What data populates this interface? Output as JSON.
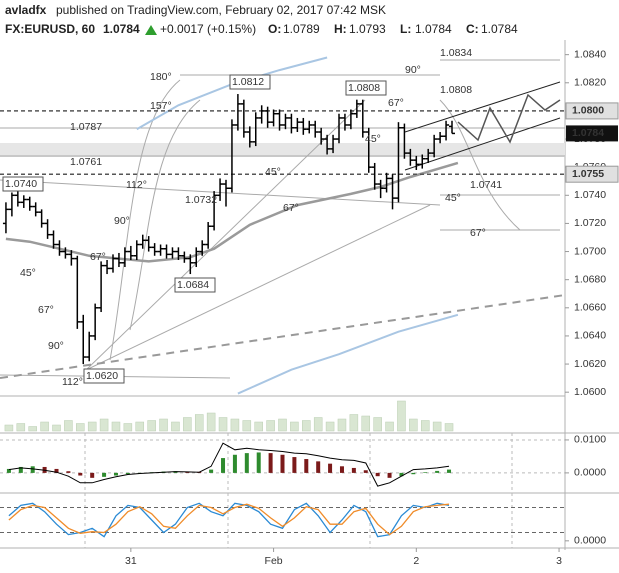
{
  "header": {
    "author": "avladfx",
    "published": "published on TradingView.com, February 02, 2017 07:42 MSK",
    "symbol": "FX:EURUSD, 60",
    "last": "1.0784",
    "change": "+0.0017 (+0.15%)",
    "ohlc": [
      {
        "label": "O:",
        "value": "1.0789"
      },
      {
        "label": "H:",
        "value": "1.0793"
      },
      {
        "label": "L:",
        "value": "1.0784"
      },
      {
        "label": "C:",
        "value": "1.0784"
      }
    ]
  },
  "chart_data": [
    {
      "type": "ohlc",
      "xlim": [
        -1,
        94
      ],
      "ylim": [
        1.0598,
        1.0849
      ],
      "xticks": [
        {
          "value": 21,
          "label": "31"
        },
        {
          "value": 45,
          "label": "Feb"
        },
        {
          "value": 69,
          "label": "2"
        },
        {
          "value": 93,
          "label": "3"
        }
      ],
      "yticks": [
        {
          "value": 1.084,
          "label": "1.0840"
        },
        {
          "value": 1.082,
          "label": "1.0820"
        },
        {
          "value": 1.08,
          "label": "1.0800"
        },
        {
          "value": 1.078,
          "label": "1.0780"
        },
        {
          "value": 1.076,
          "label": "1.0760"
        },
        {
          "value": 1.074,
          "label": "1.0740"
        },
        {
          "value": 1.072,
          "label": "1.0720"
        },
        {
          "value": 1.07,
          "label": "1.0700"
        },
        {
          "value": 1.068,
          "label": "1.0680"
        },
        {
          "value": 1.066,
          "label": "1.0660"
        },
        {
          "value": 1.064,
          "label": "1.0640"
        },
        {
          "value": 1.062,
          "label": "1.0620"
        },
        {
          "value": 1.06,
          "label": "1.0600"
        }
      ],
      "price_lines": [
        {
          "value": 1.08,
          "label": "1.0800"
        },
        {
          "value": 1.0755,
          "label": "1.0755"
        }
      ],
      "last_price": {
        "value": 1.0784,
        "label": "1.0784"
      },
      "color": "#000000",
      "bars": [
        [
          1.072,
          1.0735,
          1.0713,
          1.073
        ],
        [
          1.073,
          1.0742,
          1.0725,
          1.074
        ],
        [
          1.074,
          1.0743,
          1.0732,
          1.0735
        ],
        [
          1.0735,
          1.074,
          1.0731,
          1.0737
        ],
        [
          1.0737,
          1.0739,
          1.0729,
          1.0732
        ],
        [
          1.0732,
          1.0735,
          1.0725,
          1.0728
        ],
        [
          1.0728,
          1.073,
          1.0717,
          1.072
        ],
        [
          1.072,
          1.0723,
          1.0709,
          1.0712
        ],
        [
          1.0712,
          1.0715,
          1.0702,
          1.0705
        ],
        [
          1.0705,
          1.0708,
          1.0697,
          1.07
        ],
        [
          1.07,
          1.0703,
          1.0695,
          1.0698
        ],
        [
          1.0698,
          1.0701,
          1.069,
          1.0695
        ],
        [
          1.0695,
          1.0697,
          1.0645,
          1.065
        ],
        [
          1.065,
          1.0655,
          1.062,
          1.0625
        ],
        [
          1.0625,
          1.0643,
          1.0622,
          1.064
        ],
        [
          1.064,
          1.0663,
          1.0637,
          1.066
        ],
        [
          1.066,
          1.0693,
          1.0657,
          1.069
        ],
        [
          1.069,
          1.0694,
          1.0684,
          1.0688
        ],
        [
          1.0688,
          1.0698,
          1.0685,
          1.0695
        ],
        [
          1.0695,
          1.0699,
          1.0689,
          1.0692
        ],
        [
          1.0692,
          1.0703,
          1.0689,
          1.07
        ],
        [
          1.07,
          1.0704,
          1.0694,
          1.0697
        ],
        [
          1.0697,
          1.0708,
          1.0694,
          1.0705
        ],
        [
          1.0705,
          1.0712,
          1.0702,
          1.0708
        ],
        [
          1.0708,
          1.0711,
          1.07,
          1.0703
        ],
        [
          1.0703,
          1.0706,
          1.0697,
          1.07
        ],
        [
          1.07,
          1.0705,
          1.0697,
          1.0702
        ],
        [
          1.0702,
          1.0705,
          1.0695,
          1.0698
        ],
        [
          1.0698,
          1.0703,
          1.0695,
          1.07
        ],
        [
          1.07,
          1.0703,
          1.0694,
          1.0697
        ],
        [
          1.0697,
          1.07,
          1.0692,
          1.0695
        ],
        [
          1.0695,
          1.0698,
          1.0684,
          1.0692
        ],
        [
          1.0692,
          1.0703,
          1.0689,
          1.07
        ],
        [
          1.07,
          1.0708,
          1.0697,
          1.0705
        ],
        [
          1.0705,
          1.0721,
          1.0702,
          1.0718
        ],
        [
          1.0718,
          1.0743,
          1.0715,
          1.074
        ],
        [
          1.074,
          1.0752,
          1.0736,
          1.0748
        ],
        [
          1.0748,
          1.0751,
          1.0732,
          1.0745
        ],
        [
          1.0745,
          1.0794,
          1.0742,
          1.079
        ],
        [
          1.079,
          1.0812,
          1.0786,
          1.0805
        ],
        [
          1.0805,
          1.0808,
          1.0781,
          1.0785
        ],
        [
          1.0785,
          1.0789,
          1.0774,
          1.0778
        ],
        [
          1.0778,
          1.0799,
          1.0775,
          1.0795
        ],
        [
          1.0795,
          1.0804,
          1.0791,
          1.08
        ],
        [
          1.08,
          1.0803,
          1.0788,
          1.0792
        ],
        [
          1.0792,
          1.0801,
          1.0789,
          1.0798
        ],
        [
          1.0798,
          1.0801,
          1.0786,
          1.079
        ],
        [
          1.079,
          1.0798,
          1.0787,
          1.0795
        ],
        [
          1.0795,
          1.0798,
          1.0784,
          1.0788
        ],
        [
          1.0788,
          1.0795,
          1.0785,
          1.0792
        ],
        [
          1.0792,
          1.0795,
          1.0783,
          1.0787
        ],
        [
          1.0787,
          1.0793,
          1.0784,
          1.079
        ],
        [
          1.079,
          1.0793,
          1.0781,
          1.0785
        ],
        [
          1.0785,
          1.0788,
          1.0776,
          1.078
        ],
        [
          1.078,
          1.0783,
          1.0769,
          1.0773
        ],
        [
          1.0773,
          1.0783,
          1.077,
          1.078
        ],
        [
          1.078,
          1.0798,
          1.0777,
          1.0795
        ],
        [
          1.0795,
          1.0798,
          1.0786,
          1.079
        ],
        [
          1.079,
          1.0801,
          1.0787,
          1.0798
        ],
        [
          1.0798,
          1.0808,
          1.0795,
          1.0805
        ],
        [
          1.0805,
          1.0808,
          1.0781,
          1.0785
        ],
        [
          1.0785,
          1.0788,
          1.0756,
          1.076
        ],
        [
          1.076,
          1.0763,
          1.0744,
          1.0748
        ],
        [
          1.0748,
          1.0751,
          1.0738,
          1.0745
        ],
        [
          1.0745,
          1.0756,
          1.0742,
          1.0752
        ],
        [
          1.0752,
          1.0755,
          1.073,
          1.0738
        ],
        [
          1.0738,
          1.0792,
          1.0735,
          1.0788
        ],
        [
          1.0788,
          1.0791,
          1.0766,
          1.077
        ],
        [
          1.077,
          1.0773,
          1.0761,
          1.0765
        ],
        [
          1.0765,
          1.0768,
          1.0758,
          1.0762
        ],
        [
          1.0762,
          1.0769,
          1.0759,
          1.0766
        ],
        [
          1.0766,
          1.0773,
          1.0763,
          1.077
        ],
        [
          1.077,
          1.0783,
          1.0767,
          1.078
        ],
        [
          1.078,
          1.0785,
          1.0777,
          1.0782
        ],
        [
          1.0782,
          1.0793,
          1.0779,
          1.079
        ],
        [
          1.0789,
          1.0793,
          1.0784,
          1.0784
        ]
      ],
      "lines": [
        {
          "color": "#9a9a9a",
          "x": [
            0,
            4,
            9,
            14,
            24,
            31,
            35,
            41,
            49,
            58,
            63,
            68,
            76
          ],
          "values": [
            1.0709,
            1.0707,
            1.0702,
            1.0697,
            1.0693,
            1.0696,
            1.0702,
            1.0719,
            1.0733,
            1.0741,
            1.0746,
            1.0753,
            1.0763
          ]
        },
        {
          "color": "#a9c6e3",
          "x": [
            22,
            29,
            38,
            46,
            54
          ],
          "values": [
            1.0787,
            1.0804,
            1.0819,
            1.0829,
            1.0838
          ]
        },
        {
          "color": "#a9c6e3",
          "x": [
            39,
            48,
            56,
            66,
            76
          ],
          "values": [
            1.0599,
            1.0616,
            1.0627,
            1.0643,
            1.0655
          ]
        }
      ],
      "annotations": [
        "1.0834",
        "90°",
        "180°",
        "1.0812",
        "1.0808",
        "1.0808",
        "157°",
        "67°",
        "1.0787",
        "45°",
        "1.0761",
        "45°",
        "112°",
        "1.0740",
        "1.0741",
        "1.0732",
        "45°",
        "67°",
        "90°",
        "67°",
        "67°",
        "45°",
        "1.0684",
        "67°",
        "90°",
        "1.0620",
        "112°"
      ]
    },
    {
      "type": "volume",
      "color": "#d9e6d2",
      "values": [
        20,
        25,
        15,
        30,
        20,
        35,
        25,
        30,
        40,
        30,
        25,
        30,
        35,
        40,
        30,
        45,
        55,
        60,
        45,
        40,
        35,
        30,
        35,
        40,
        30,
        35,
        45,
        30,
        40,
        55,
        50,
        45,
        30,
        100,
        40,
        35,
        30,
        25
      ]
    },
    {
      "type": "macd",
      "ylim": [
        -0.0058,
        0.0115
      ],
      "yticks": [
        {
          "value": 0.01,
          "label": "0.0100"
        },
        {
          "value": 0,
          "label": "0.0000"
        }
      ],
      "series": [
        {
          "color": "#000000",
          "values": [
            0.001,
            0.0015,
            0.0012,
            0.0008,
            0.0002,
            -0.001,
            -0.003,
            -0.003,
            -0.002,
            -0.0012,
            -0.0005,
            -0.0002,
            0.0,
            0.0002,
            0.0004,
            0.0003,
            0.0002,
            0.002,
            0.009,
            0.007,
            0.0075,
            0.007,
            0.0068,
            0.0065,
            0.006,
            0.0058,
            0.0052,
            0.0045,
            0.004,
            0.0038,
            0.003,
            -0.004,
            -0.003,
            -0.001,
            0.001,
            0.0012,
            0.0015,
            0.002
          ]
        },
        {
          "color": "#2e8b2e",
          "values": [
            0.0012,
            0.0018,
            0.002,
            0.0018,
            0.0012,
            0.0005,
            -0.0008,
            -0.0015,
            -0.0012,
            -0.0008,
            -0.0004,
            -0.0002,
            0.0002,
            0.0004,
            0.0005,
            0.0004,
            0.0003,
            0.001,
            0.0045,
            0.0055,
            0.006,
            0.0062,
            0.006,
            0.0055,
            0.0048,
            0.0042,
            0.0035,
            0.0028,
            0.002,
            0.0015,
            0.0008,
            -0.001,
            -0.0015,
            -0.001,
            -0.0004,
            0.0002,
            0.0006,
            0.001
          ]
        }
      ]
    },
    {
      "type": "stochastic",
      "ylim": [
        -10,
        110
      ],
      "levels": [
        20,
        80
      ],
      "yticks": [
        {
          "value": 0,
          "label": "0.0000"
        }
      ],
      "series": [
        {
          "color": "#2a8ad4",
          "values": [
            60,
            85,
            90,
            70,
            40,
            15,
            20,
            30,
            10,
            60,
            85,
            80,
            50,
            20,
            40,
            80,
            90,
            70,
            60,
            90,
            85,
            70,
            40,
            30,
            75,
            90,
            60,
            20,
            50,
            85,
            70,
            10,
            15,
            60,
            85,
            80,
            90,
            85
          ]
        },
        {
          "color": "#f08c2a",
          "values": [
            50,
            75,
            85,
            80,
            55,
            30,
            18,
            22,
            20,
            40,
            70,
            82,
            65,
            35,
            30,
            60,
            85,
            80,
            65,
            80,
            88,
            78,
            55,
            35,
            55,
            82,
            75,
            40,
            40,
            70,
            78,
            40,
            15,
            35,
            70,
            82,
            85,
            88
          ]
        }
      ]
    }
  ]
}
